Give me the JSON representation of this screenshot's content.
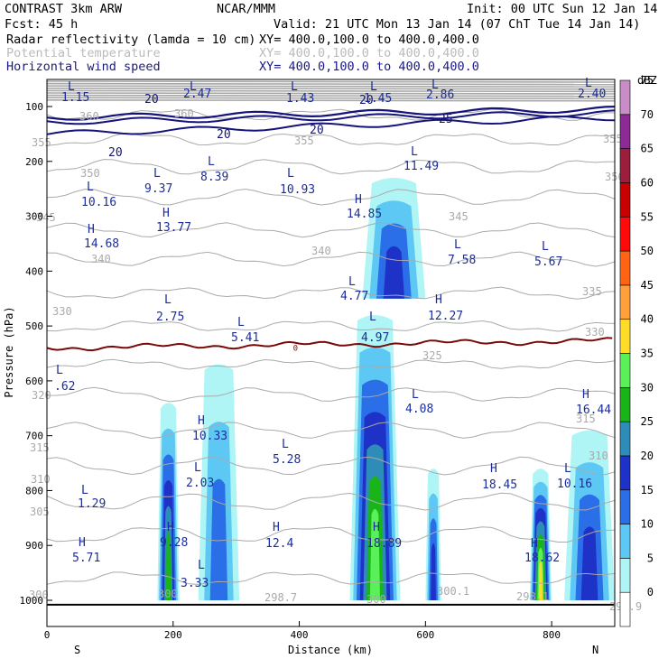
{
  "header": {
    "model": "CONTRAST  3km ARW",
    "org": "NCAR/MMM",
    "init": "Init: 00 UTC Sun 12 Jan 14",
    "fcst": "Fcst:   45 h",
    "valid": "Valid: 21 UTC Mon 13 Jan 14 (07 ChT Tue 14 Jan 14)",
    "fields": [
      {
        "label": "Radar reflectivity (lamda = 10 cm)",
        "xy": "XY= 400.0,100.0 to 400.0,400.0",
        "color": "#000000"
      },
      {
        "label": "Potential temperature",
        "xy": "XY= 400.0,100.0 to 400.0,400.0",
        "color": "#bbbbbb"
      },
      {
        "label": "Horizontal wind speed",
        "xy": "XY= 400.0,100.0 to 400.0,400.0",
        "color": "#1a1a80"
      }
    ]
  },
  "chart_data": {
    "type": "heatmap",
    "title": "Radar reflectivity (lamda = 10 cm)",
    "xlabel": "Distance (km)",
    "ylabel": "Pressure (hPa)",
    "xlim": [
      0,
      900
    ],
    "ylim": [
      1000,
      60
    ],
    "x_ticks": [
      0,
      200,
      400,
      600,
      800
    ],
    "y_ticks": [
      100,
      200,
      300,
      400,
      500,
      600,
      700,
      800,
      900,
      1000
    ],
    "x_end_labels": {
      "left": "S",
      "right": "N"
    },
    "colorbar": {
      "unit": "dBZ",
      "levels": [
        0,
        5,
        10,
        15,
        20,
        25,
        30,
        35,
        40,
        45,
        50,
        55,
        60,
        65,
        70,
        75
      ],
      "colors": [
        "#ffffff",
        "#b0f5f5",
        "#5ec8f5",
        "#2a6ee8",
        "#1e32c8",
        "#2e8cb8",
        "#18b418",
        "#5af05a",
        "#ffdc28",
        "#ffa03c",
        "#ff6414",
        "#ff0a0a",
        "#c80000",
        "#9b1e3c",
        "#8c2a96",
        "#c88cc8"
      ]
    },
    "reflectivity_cells": [
      {
        "x": [
          480,
          560
        ],
        "p": [
          1000,
          480
        ],
        "max_dbz": 35
      },
      {
        "x": [
          500,
          600
        ],
        "p": [
          450,
          230
        ],
        "max_dbz": 20
      },
      {
        "x": [
          175,
          210
        ],
        "p": [
          1000,
          640
        ],
        "max_dbz": 30
      },
      {
        "x": [
          240,
          305
        ],
        "p": [
          1000,
          570
        ],
        "max_dbz": 15
      },
      {
        "x": [
          600,
          625
        ],
        "p": [
          1000,
          760
        ],
        "max_dbz": 20
      },
      {
        "x": [
          765,
          800
        ],
        "p": [
          1000,
          760
        ],
        "max_dbz": 40
      },
      {
        "x": [
          820,
          900
        ],
        "p": [
          1000,
          690
        ],
        "max_dbz": 20
      }
    ],
    "theta_contours": {
      "levels": [
        300,
        305,
        310,
        315,
        320,
        325,
        330,
        335,
        340,
        345,
        350,
        355,
        360,
        365,
        370
      ]
    },
    "wind_contours": {
      "levels": [
        20,
        25
      ]
    },
    "freezing_level": {
      "label": "0",
      "p": 540
    },
    "extrema": [
      {
        "type": "L",
        "value": "1.15"
      },
      {
        "type": "L",
        "value": "2.47"
      },
      {
        "type": "L",
        "value": "1.43"
      },
      {
        "type": "L",
        "value": "1.45"
      },
      {
        "type": "L",
        "value": "2.86"
      },
      {
        "type": "L",
        "value": "2.40"
      },
      {
        "type": "L",
        "value": "11.49"
      },
      {
        "type": "L",
        "value": "10.16"
      },
      {
        "type": "L",
        "value": "9.37"
      },
      {
        "type": "L",
        "value": "8.39"
      },
      {
        "type": "L",
        "value": "10.93"
      },
      {
        "type": "H",
        "value": "14.85"
      },
      {
        "type": "H",
        "value": "14.68"
      },
      {
        "type": "H",
        "value": "13.77"
      },
      {
        "type": "L",
        "value": "7.58"
      },
      {
        "type": "L",
        "value": "5.67"
      },
      {
        "type": "L",
        "value": "4.77"
      },
      {
        "type": "H",
        "value": "12.27"
      },
      {
        "type": "L",
        "value": "2.75"
      },
      {
        "type": "L",
        "value": "5.41"
      },
      {
        "type": "L",
        "value": "4.97"
      },
      {
        "type": "L",
        "value": ".62"
      },
      {
        "type": "L",
        "value": "4.08"
      },
      {
        "type": "H",
        "value": "16.44"
      },
      {
        "type": "H",
        "value": "10.33"
      },
      {
        "type": "L",
        "value": "5.28"
      },
      {
        "type": "H",
        "value": "18.45"
      },
      {
        "type": "L",
        "value": "10.16"
      },
      {
        "type": "L",
        "value": "2.03"
      },
      {
        "type": "L",
        "value": "1.29"
      },
      {
        "type": "H",
        "value": "9.28"
      },
      {
        "type": "H",
        "value": "12.4"
      },
      {
        "type": "H",
        "value": "18.89"
      },
      {
        "type": "H",
        "value": "18.62"
      },
      {
        "type": "H",
        "value": "5.71"
      },
      {
        "type": "L",
        "value": "3.33"
      }
    ],
    "contour_labels": {
      "theta": [
        "360",
        "360",
        "355",
        "355",
        "355",
        "350",
        "350",
        "345",
        "345",
        "340",
        "340",
        "335",
        "330",
        "330",
        "325",
        "320",
        "315",
        "315",
        "310",
        "310",
        "305",
        "300",
        "300",
        "300.1",
        "298.7",
        "298.1",
        "298.9",
        "300"
      ],
      "wind": [
        "20",
        "20",
        "20",
        "20",
        "25",
        "20"
      ]
    }
  }
}
